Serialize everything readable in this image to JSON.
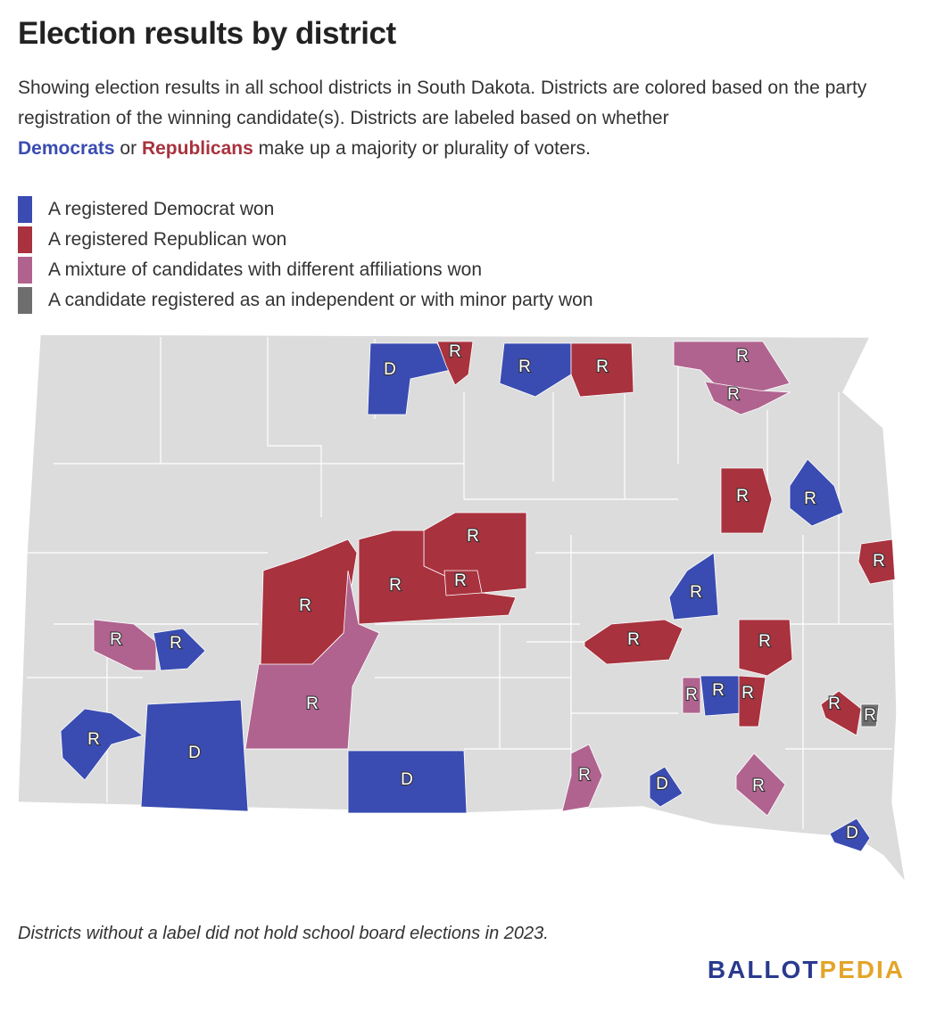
{
  "title": "Election results by district",
  "description": [
    "Showing election results in all school districts in South Dakota. Districts are colored based on the party registration of the winning candidate(s). Districts are labeled based on whether",
    "Democrats",
    "or",
    "Republicans",
    "make up a majority or plurality of voters."
  ],
  "legend": [
    {
      "label": "A registered Democrat won",
      "color": "#3a4cb1"
    },
    {
      "label": "A registered Republican won",
      "color": "#a8323e"
    },
    {
      "label": "A mixture of candidates with different affiliations won",
      "color": "#b0638f"
    },
    {
      "label": "A candidate registered as an independent or with minor party won",
      "color": "#6e6e6e"
    }
  ],
  "districts": [
    {
      "label": "D",
      "color": "#3a4cb1"
    },
    {
      "label": "R",
      "color": "#a8323e"
    },
    {
      "label": "R",
      "color": "#3a4cb1"
    },
    {
      "label": "R",
      "color": "#a8323e"
    },
    {
      "label": "R",
      "color": "#b0638f"
    },
    {
      "label": "R",
      "color": "#b0638f"
    },
    {
      "label": "R",
      "color": "#a8323e"
    },
    {
      "label": "R",
      "color": "#3a4cb1"
    },
    {
      "label": "R",
      "color": "#a8323e"
    },
    {
      "label": "R",
      "color": "#a8323e"
    },
    {
      "label": "R",
      "color": "#a8323e"
    },
    {
      "label": "R",
      "color": "#a8323e"
    },
    {
      "label": "R",
      "color": "#a8323e"
    },
    {
      "label": "R",
      "color": "#b0638f"
    },
    {
      "label": "R",
      "color": "#3a4cb1"
    },
    {
      "label": "R",
      "color": "#a8323e"
    },
    {
      "label": "R",
      "color": "#a8323e"
    },
    {
      "label": "R",
      "color": "#b0638f"
    },
    {
      "label": "R",
      "color": "#3a4cb1"
    },
    {
      "label": "R",
      "color": "#3a4cb1"
    },
    {
      "label": "D",
      "color": "#3a4cb1"
    },
    {
      "label": "D",
      "color": "#3a4cb1"
    },
    {
      "label": "R",
      "color": "#b0638f"
    },
    {
      "label": "R",
      "color": "#3a4cb1"
    },
    {
      "label": "R",
      "color": "#a8323e"
    },
    {
      "label": "R",
      "color": "#a8323e"
    },
    {
      "label": "R",
      "color": "#6e6e6e"
    },
    {
      "label": "R",
      "color": "#b0638f"
    },
    {
      "label": "D",
      "color": "#3a4cb1"
    },
    {
      "label": "R",
      "color": "#b0638f"
    },
    {
      "label": "D",
      "color": "#3a4cb1"
    }
  ],
  "footnote": "Districts without a label did not hold school board elections in 2023.",
  "logo": [
    "BALLOT",
    "PEDIA"
  ]
}
